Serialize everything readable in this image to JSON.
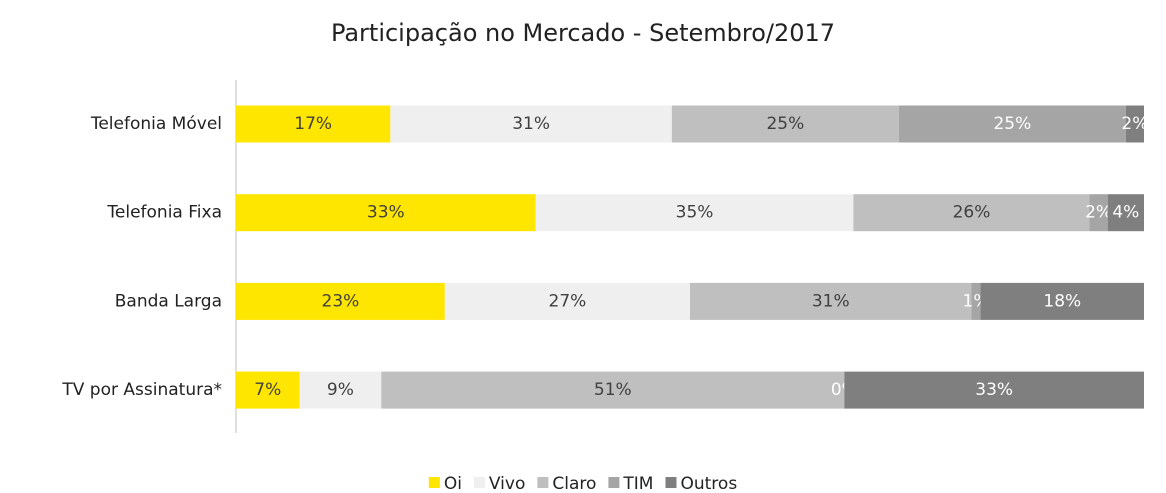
{
  "chart_data": {
    "type": "stacked_bar_horizontal",
    "title": "Participação no Mercado - Setembro/2017",
    "categories": [
      "Telefonia Móvel",
      "Telefonia Fixa",
      "Banda Larga",
      "TV por Assinatura*"
    ],
    "series": [
      {
        "name": "Oi",
        "color": "#FFE600",
        "values": [
          17,
          33,
          23,
          7
        ],
        "value_labels": [
          "17%",
          "33%",
          "23%",
          "7%"
        ]
      },
      {
        "name": "Vivo",
        "color": "#EFEFEF",
        "values": [
          31,
          35,
          27,
          9
        ],
        "value_labels": [
          "31%",
          "35%",
          "27%",
          "9%"
        ]
      },
      {
        "name": "Claro",
        "color": "#BFBFBF",
        "values": [
          25,
          26,
          31,
          51
        ],
        "value_labels": [
          "25%",
          "26%",
          "31%",
          "51%"
        ]
      },
      {
        "name": "TIM",
        "color": "#A5A5A5",
        "values": [
          25,
          2,
          1,
          0
        ],
        "value_labels": [
          "25%",
          "2%",
          "1%",
          "0%"
        ]
      },
      {
        "name": "Outros",
        "color": "#7F7F7F",
        "values": [
          2,
          4,
          18,
          33
        ],
        "value_labels": [
          "2%",
          "4%",
          "18%",
          "33%"
        ]
      }
    ],
    "legend": "bottom"
  }
}
